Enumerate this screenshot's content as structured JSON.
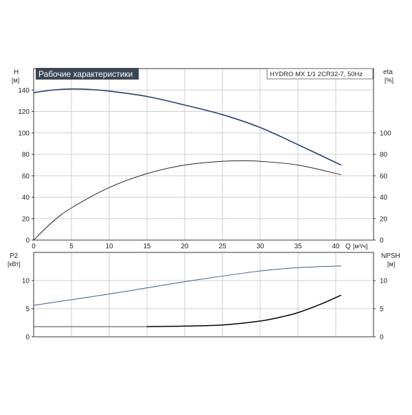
{
  "chart_data": [
    {
      "type": "line",
      "title": "Рабочие характеристики",
      "model": "HYDRO MX 1/1 2CR32-7, 50Hz",
      "xlabel": "Q",
      "xunit": "[м³/ч]",
      "xlim": [
        0,
        45
      ],
      "xticks": [
        0,
        5,
        10,
        15,
        20,
        25,
        30,
        35,
        40
      ],
      "y_left_label": "H",
      "y_left_unit": "[м]",
      "y_left_lim": [
        0,
        160
      ],
      "y_left_ticks": [
        0,
        20,
        40,
        60,
        80,
        100,
        120,
        140
      ],
      "y_right_label": "eta",
      "y_right_unit": "[%]",
      "y_right_lim": [
        0,
        160
      ],
      "y_right_ticks": [
        0,
        20,
        40,
        60,
        80,
        100
      ],
      "grid": true,
      "series": [
        {
          "color": "#1f3f6e",
          "axis": "left",
          "x": [
            0,
            2.5,
            5,
            7.5,
            10,
            15,
            20,
            25,
            30,
            35,
            40.7
          ],
          "values": [
            137.5,
            140,
            141,
            140.5,
            139,
            134,
            126,
            117,
            105,
            89,
            70
          ]
        },
        {
          "color": "#222222",
          "axis": "right",
          "x": [
            0,
            2.5,
            5,
            10,
            15,
            20,
            25,
            28,
            30,
            35,
            40.7
          ],
          "values": [
            0,
            17,
            30,
            49,
            62,
            70,
            73.5,
            74,
            73.5,
            70,
            61
          ]
        }
      ]
    },
    {
      "type": "line",
      "xlim": [
        0,
        45
      ],
      "xticks": [
        0,
        5,
        10,
        15,
        20,
        25,
        30,
        35,
        40
      ],
      "y_left_label": "P2",
      "y_left_unit": "[кВт]",
      "y_left_lim": [
        0,
        15
      ],
      "y_left_ticks": [
        0,
        5,
        10
      ],
      "y_right_label": "NPSH",
      "y_right_unit": "[м]",
      "y_right_lim": [
        0,
        15
      ],
      "y_right_ticks": [
        0,
        5,
        10
      ],
      "grid": true,
      "series": [
        {
          "color": "#3a5a8a",
          "axis": "left",
          "x": [
            0,
            5,
            10,
            15,
            20,
            25,
            30,
            35,
            40.7
          ],
          "values": [
            5.6,
            6.6,
            7.6,
            8.7,
            9.8,
            10.8,
            11.7,
            12.3,
            12.6
          ]
        },
        {
          "color": "#444444",
          "axis": "right",
          "x": [
            0,
            15
          ],
          "values": [
            1.8,
            1.8
          ]
        },
        {
          "color": "#000000",
          "axis": "right",
          "x": [
            15,
            20,
            25,
            30,
            33,
            35,
            38,
            40.7
          ],
          "values": [
            1.8,
            1.9,
            2.1,
            2.8,
            3.6,
            4.3,
            5.8,
            7.4
          ]
        }
      ]
    }
  ]
}
